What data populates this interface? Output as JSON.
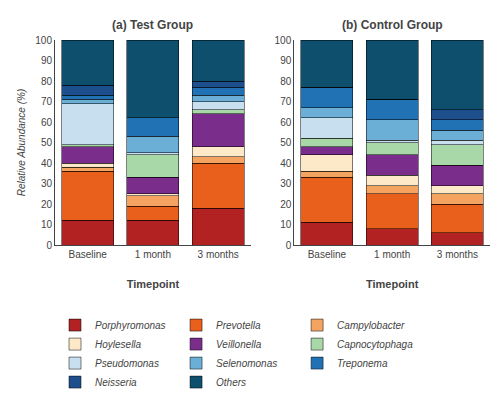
{
  "chart_data": [
    {
      "type": "bar",
      "stacked": true,
      "title": "(a) Test Group",
      "xlabel": "Timepoint",
      "ylabel": "Relative Abundance (%)",
      "categories": [
        "Baseline",
        "1 month",
        "3 months"
      ],
      "series": [
        {
          "name": "Porphyromonas",
          "color": "#b22222",
          "values": [
            12,
            12,
            18
          ]
        },
        {
          "name": "Prevotella",
          "color": "#e8601c",
          "values": [
            24,
            7,
            22
          ]
        },
        {
          "name": "Campylobacter",
          "color": "#f4a460",
          "values": [
            2,
            5,
            3
          ]
        },
        {
          "name": "Hoylesella",
          "color": "#fde8c8",
          "values": [
            2,
            1,
            5
          ]
        },
        {
          "name": "Veillonella",
          "color": "#7b2d8b",
          "values": [
            8,
            8,
            16
          ]
        },
        {
          "name": "Capnocytophaga",
          "color": "#a8d8a8",
          "values": [
            1,
            11,
            2
          ]
        },
        {
          "name": "Pseudomonas",
          "color": "#c8dff0",
          "values": [
            20,
            1,
            4
          ]
        },
        {
          "name": "Selenomonas",
          "color": "#6baed6",
          "values": [
            2,
            8,
            3
          ]
        },
        {
          "name": "Treponema",
          "color": "#2171b5",
          "values": [
            2,
            9,
            4
          ]
        },
        {
          "name": "Neisseria",
          "color": "#1d4f8c",
          "values": [
            5,
            0,
            3
          ]
        },
        {
          "name": "Others",
          "color": "#0d4f6c",
          "values": [
            22,
            38,
            20
          ]
        }
      ],
      "ylim": [
        0,
        100
      ],
      "yticks": [
        0,
        10,
        20,
        30,
        40,
        50,
        60,
        70,
        80,
        90,
        100
      ],
      "grid": false,
      "legend": "bottom"
    },
    {
      "type": "bar",
      "stacked": true,
      "title": "(b) Control Group",
      "xlabel": "Timepoint",
      "categories": [
        "Baseline",
        "1 month",
        "3 months"
      ],
      "series": [
        {
          "name": "Porphyromonas",
          "color": "#b22222",
          "values": [
            11,
            8,
            6
          ]
        },
        {
          "name": "Prevotella",
          "color": "#e8601c",
          "values": [
            22,
            17,
            14
          ]
        },
        {
          "name": "Campylobacter",
          "color": "#f4a460",
          "values": [
            3,
            4,
            5
          ]
        },
        {
          "name": "Hoylesella",
          "color": "#fde8c8",
          "values": [
            8,
            5,
            4
          ]
        },
        {
          "name": "Veillonella",
          "color": "#7b2d8b",
          "values": [
            4,
            10,
            10
          ]
        },
        {
          "name": "Capnocytophaga",
          "color": "#a8d8a8",
          "values": [
            4,
            6,
            10
          ]
        },
        {
          "name": "Pseudomonas",
          "color": "#c8dff0",
          "values": [
            10,
            1,
            2
          ]
        },
        {
          "name": "Selenomonas",
          "color": "#6baed6",
          "values": [
            5,
            10,
            5
          ]
        },
        {
          "name": "Treponema",
          "color": "#2171b5",
          "values": [
            10,
            10,
            5
          ]
        },
        {
          "name": "Neisseria",
          "color": "#1d4f8c",
          "values": [
            0,
            0,
            5
          ]
        },
        {
          "name": "Others",
          "color": "#0d4f6c",
          "values": [
            23,
            29,
            34
          ]
        }
      ],
      "ylim": [
        0,
        100
      ],
      "yticks": [
        0,
        10,
        20,
        30,
        40,
        50,
        60,
        70,
        80,
        90,
        100
      ],
      "grid": false,
      "legend": "bottom"
    }
  ]
}
